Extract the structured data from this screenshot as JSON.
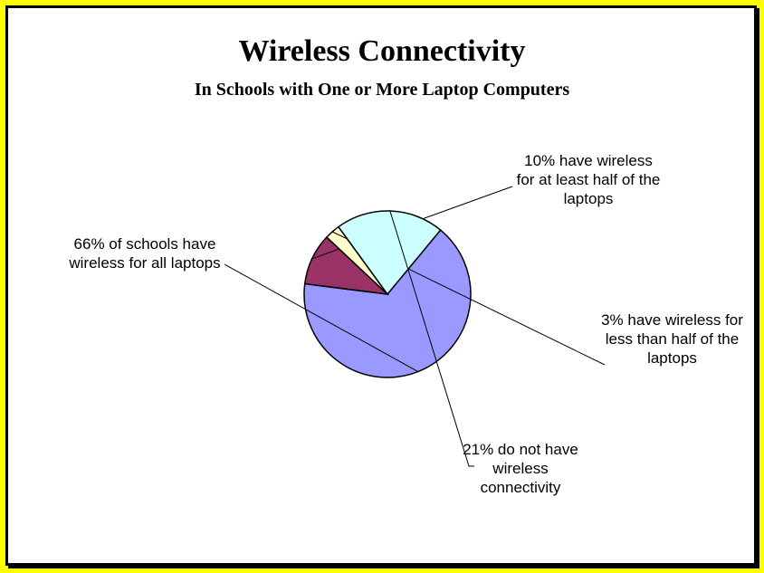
{
  "chart_data": {
    "type": "pie",
    "title": "Wireless Connectivity",
    "subtitle": "In Schools with One or More Laptop Computers",
    "slices": [
      {
        "label": "66% of schools have wireless for all laptops",
        "value": 66,
        "color": "#9999ff"
      },
      {
        "label": "10% have wireless for at least half of the laptops",
        "value": 10,
        "color": "#993366"
      },
      {
        "label": "3% have wireless for less than half of the laptops",
        "value": 3,
        "color": "#ffffcc"
      },
      {
        "label": "21% do not have wireless connectivity",
        "value": 21,
        "color": "#ccffff"
      }
    ]
  },
  "colors": {
    "background": "#ffff00",
    "panel": "#ffffff",
    "border": "#000000"
  }
}
